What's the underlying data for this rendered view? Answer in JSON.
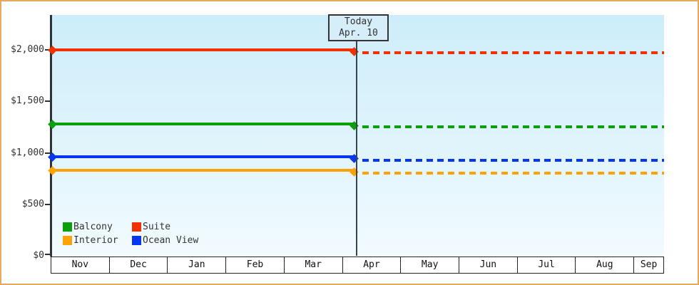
{
  "chart_data": {
    "type": "line",
    "title": "",
    "x_categories": [
      "Nov",
      "Dec",
      "Jan",
      "Feb",
      "Mar",
      "Apr",
      "May",
      "Jun",
      "Jul",
      "Aug",
      "Sep"
    ],
    "y_ticks": [
      {
        "value": 0,
        "label": "$0"
      },
      {
        "value": 500,
        "label": "$500"
      },
      {
        "value": 1000,
        "label": "$1,000"
      },
      {
        "value": 1500,
        "label": "$1,500"
      },
      {
        "value": 2000,
        "label": "$2,000"
      }
    ],
    "ylim": [
      0,
      2340
    ],
    "currency_prefix": "$",
    "grid": false,
    "today_annotation": {
      "line1": "Today",
      "line2": "Apr. 10",
      "month": "Apr",
      "fraction_into_month": 0.3
    },
    "series": [
      {
        "name": "Suite",
        "color": "#f23000",
        "value_current": 2000,
        "value_forecast": 1970
      },
      {
        "name": "Balcony",
        "color": "#0ba00b",
        "value_current": 1280,
        "value_forecast": 1250
      },
      {
        "name": "Ocean View",
        "color": "#0636f0",
        "value_current": 960,
        "value_forecast": 930
      },
      {
        "name": "Interior",
        "color": "#ffa302",
        "value_current": 830,
        "value_forecast": 800
      }
    ],
    "line_semantics": {
      "solid": "price up to today",
      "dashed": "price after today"
    },
    "legend_order": [
      "Balcony",
      "Suite",
      "Interior",
      "Ocean View"
    ],
    "legend_position": "bottom-left"
  },
  "colors": {
    "frame_border": "#e9a95c",
    "axis": "#2e3436",
    "text": "#333333",
    "plot_bg_top": "#cdedfa",
    "plot_bg_bottom": "#f2fbff",
    "today_box_bg": "#d5eefa",
    "month_band_bg": "#ffffff"
  }
}
